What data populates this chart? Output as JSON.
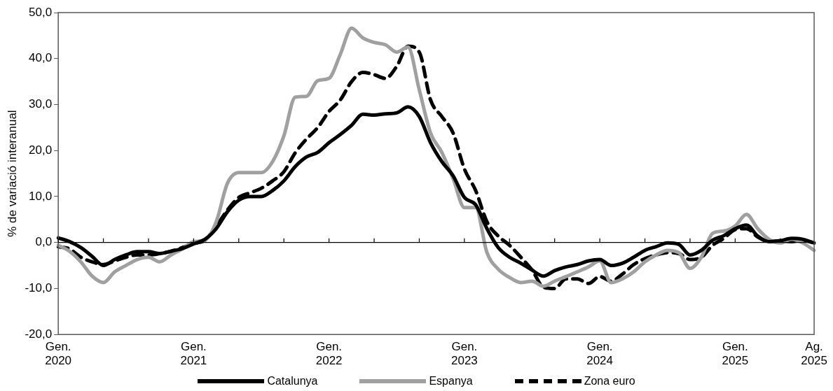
{
  "chart_data": {
    "type": "line",
    "ylabel": "% de variació interanual",
    "categories": [
      "Gen. 2020",
      null,
      null,
      null,
      null,
      null,
      null,
      null,
      null,
      null,
      null,
      null,
      "Gen. 2021",
      null,
      null,
      null,
      null,
      null,
      null,
      null,
      null,
      null,
      null,
      null,
      "Gen. 2022",
      null,
      null,
      null,
      null,
      null,
      null,
      null,
      null,
      null,
      null,
      null,
      "Gen. 2023",
      null,
      null,
      null,
      null,
      null,
      null,
      null,
      null,
      null,
      null,
      null,
      "Gen. 2024",
      null,
      null,
      null,
      null,
      null,
      null,
      null,
      null,
      null,
      null,
      null,
      "Gen. 2025",
      null,
      null,
      null,
      null,
      null,
      null,
      "Ag. 2025"
    ],
    "series": [
      {
        "name": "Catalunya",
        "color": "#000000",
        "line_style": "solid",
        "values": [
          1.0,
          0.2,
          -1.1,
          -3.0,
          -5.0,
          -3.7,
          -2.7,
          -2.0,
          -2.0,
          -2.4,
          -1.9,
          -1.3,
          -0.3,
          0.7,
          3.0,
          6.7,
          9.2,
          10.0,
          10.0,
          11.3,
          13.4,
          16.5,
          18.6,
          19.6,
          21.7,
          23.5,
          25.5,
          27.9,
          27.7,
          28.0,
          28.2,
          29.5,
          27.4,
          21.7,
          17.6,
          14.5,
          9.8,
          8.2,
          3.0,
          -1.1,
          -3.2,
          -4.5,
          -6.0,
          -7.3,
          -6.1,
          -5.3,
          -4.8,
          -4.0,
          -3.7,
          -5.0,
          -4.5,
          -3.2,
          -1.7,
          -0.9,
          -0.1,
          -0.4,
          -2.7,
          -1.7,
          0.5,
          1.5,
          3.0,
          3.8,
          1.4,
          0.2,
          0.4,
          0.9,
          0.7,
          -0.1
        ]
      },
      {
        "name": "Espanya",
        "color": "#a0a0a0",
        "line_style": "solid",
        "values": [
          -0.6,
          -1.9,
          -4.2,
          -7.3,
          -8.7,
          -6.4,
          -5.0,
          -3.7,
          -3.2,
          -4.2,
          -2.7,
          -1.4,
          0.2,
          0.5,
          4.5,
          12.9,
          15.2,
          15.2,
          15.2,
          17.6,
          23.2,
          31.6,
          31.8,
          35.2,
          35.7,
          40.9,
          46.6,
          44.5,
          43.5,
          43.0,
          41.4,
          42.5,
          33.2,
          23.8,
          19.6,
          13.9,
          7.6,
          7.6,
          -2.2,
          -5.8,
          -7.6,
          -8.7,
          -8.4,
          -9.5,
          -8.4,
          -7.4,
          -6.4,
          -5.3,
          -4.0,
          -8.7,
          -7.9,
          -6.4,
          -4.2,
          -2.7,
          -1.7,
          -2.2,
          -5.6,
          -3.2,
          2.0,
          2.5,
          3.6,
          6.1,
          3.0,
          0.7,
          -0.1,
          0.7,
          -0.1,
          -1.7
        ]
      },
      {
        "name": "Zona euro",
        "color": "#000000",
        "line_style": "dashed",
        "values": [
          -0.9,
          -1.4,
          -3.2,
          -4.2,
          -4.8,
          -4.0,
          -3.2,
          -2.7,
          -2.7,
          -2.4,
          -1.9,
          -1.1,
          -0.2,
          0.5,
          3.5,
          7.1,
          9.8,
          10.8,
          11.8,
          13.4,
          15.4,
          19.5,
          22.5,
          25.0,
          28.5,
          31.0,
          35.0,
          37.0,
          36.5,
          35.7,
          38.3,
          42.7,
          41.4,
          31.0,
          27.4,
          23.8,
          16.0,
          11.3,
          4.5,
          1.4,
          -0.6,
          -3.2,
          -6.0,
          -9.7,
          -10.0,
          -7.9,
          -7.9,
          -8.9,
          -7.4,
          -8.4,
          -6.9,
          -4.8,
          -3.5,
          -2.7,
          -2.2,
          -2.4,
          -3.7,
          -3.2,
          -0.6,
          0.9,
          2.8,
          3.0,
          1.2,
          0.2,
          0.3,
          0.2,
          0.5,
          -0.1
        ]
      }
    ],
    "ylim": [
      -20,
      50
    ],
    "yticks": [
      {
        "value": -20,
        "label": "-20,0"
      },
      {
        "value": -10,
        "label": "-10,0"
      },
      {
        "value": 0,
        "label": "0,0"
      },
      {
        "value": 10,
        "label": "10,0"
      },
      {
        "value": 20,
        "label": "20,0"
      },
      {
        "value": 30,
        "label": "30,0"
      },
      {
        "value": 40,
        "label": "40,0"
      },
      {
        "value": 50,
        "label": "50,0"
      }
    ],
    "legend": "bottom"
  }
}
